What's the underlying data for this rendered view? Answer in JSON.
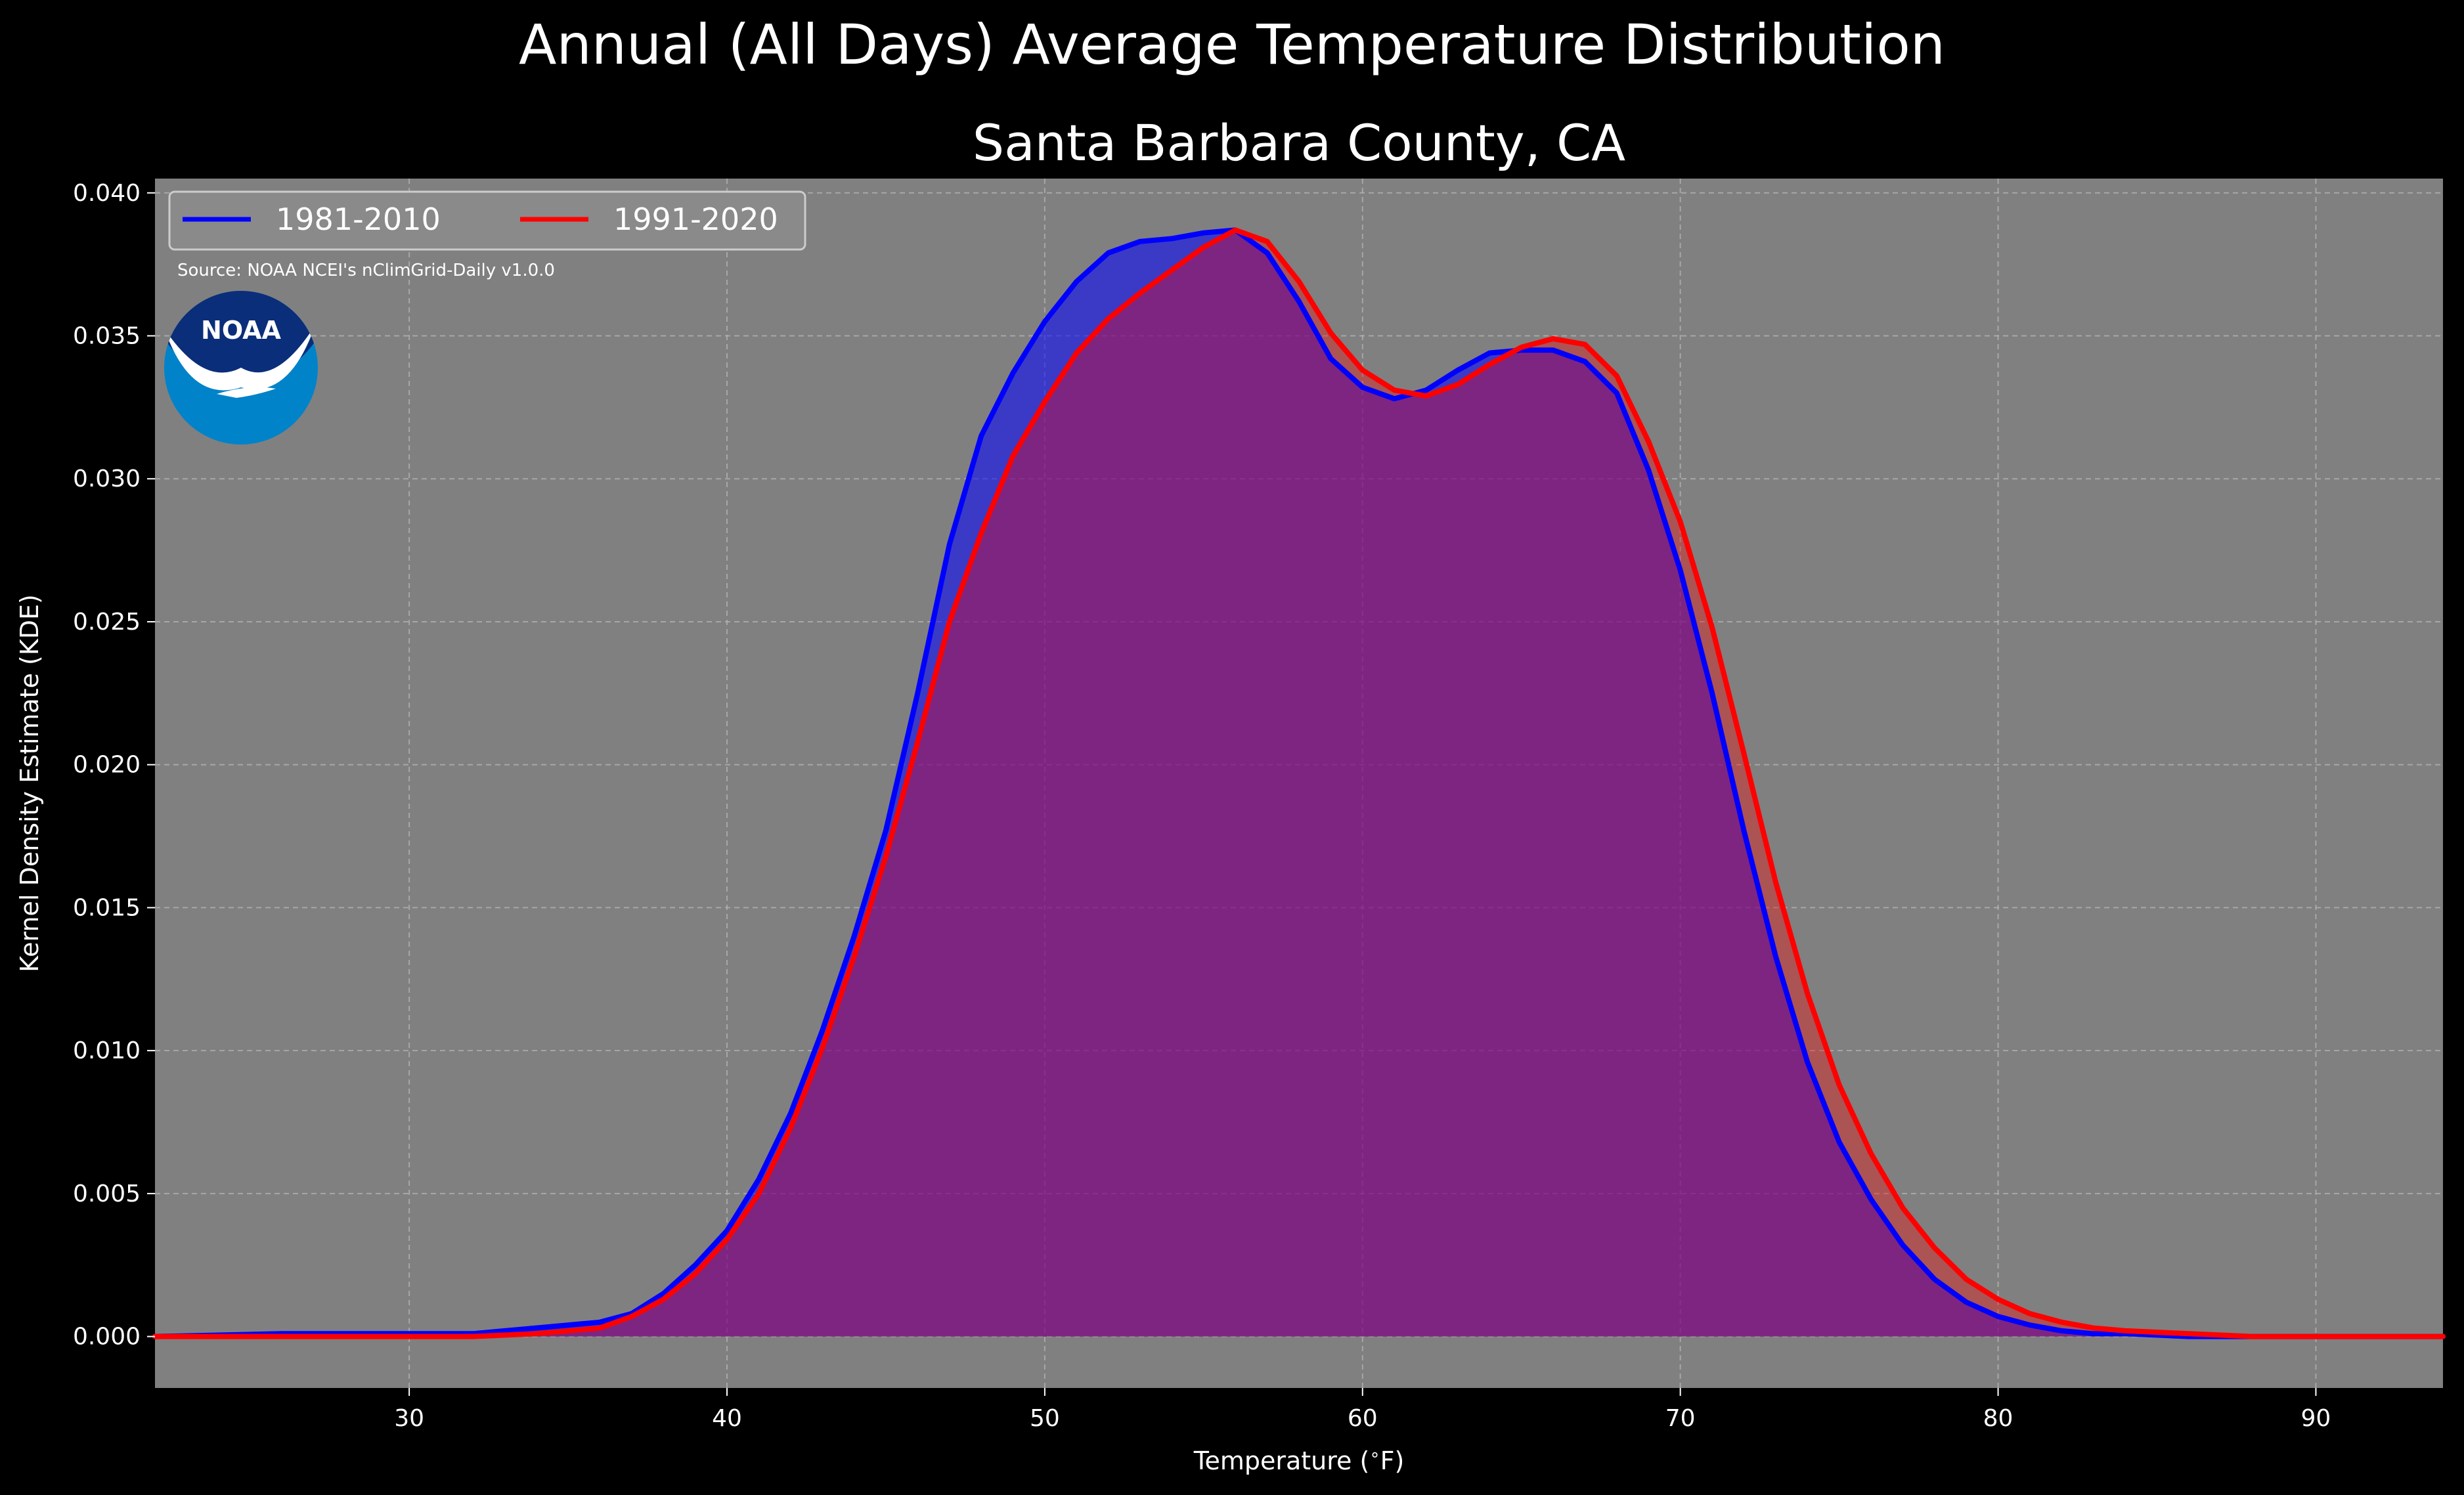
{
  "suptitle": "Annual (All Days) Average Temperature Distribution",
  "logo_text": "NOAA",
  "chart_data": {
    "type": "area",
    "title": "Santa Barbara County, CA",
    "xlabel": "Temperature ($^\\circ$F)",
    "ylabel": "Kernel Density Estimate (KDE)",
    "xlim": [
      22,
      94
    ],
    "ylim": [
      -0.0018,
      0.0405
    ],
    "xticks": [
      30,
      40,
      50,
      60,
      70,
      80,
      90
    ],
    "yticks": [
      0.0,
      0.005,
      0.01,
      0.015,
      0.02,
      0.025,
      0.03,
      0.035,
      0.04
    ],
    "ytick_labels": [
      "0.000",
      "0.005",
      "0.010",
      "0.015",
      "0.020",
      "0.025",
      "0.030",
      "0.035",
      "0.040"
    ],
    "grid": true,
    "legend_position": "top-left",
    "annotation": "Source: NOAA NCEI's nClimGrid-Daily v1.0.0",
    "background": "#808080",
    "x": [
      22,
      26,
      28,
      30,
      32,
      34,
      36,
      37,
      38,
      39,
      40,
      41,
      42,
      43,
      44,
      45,
      46,
      47,
      48,
      49,
      50,
      51,
      52,
      53,
      54,
      55,
      56,
      57,
      58,
      59,
      60,
      61,
      62,
      63,
      64,
      65,
      66,
      67,
      68,
      69,
      70,
      71,
      72,
      73,
      74,
      75,
      76,
      77,
      78,
      79,
      80,
      81,
      82,
      83,
      84,
      86,
      88,
      90,
      94
    ],
    "series": [
      {
        "name": "1981-2010",
        "color": "#0000ff",
        "fill": "#0000ff",
        "values": [
          0.0,
          0.0001,
          0.0001,
          0.0001,
          0.0001,
          0.0003,
          0.0005,
          0.0008,
          0.0015,
          0.0025,
          0.0037,
          0.0055,
          0.0078,
          0.0107,
          0.014,
          0.0177,
          0.0225,
          0.0277,
          0.0315,
          0.0337,
          0.0355,
          0.0369,
          0.0379,
          0.0383,
          0.0384,
          0.0386,
          0.0387,
          0.0379,
          0.0362,
          0.0342,
          0.0332,
          0.0328,
          0.0331,
          0.0338,
          0.0344,
          0.0345,
          0.0345,
          0.0341,
          0.033,
          0.0303,
          0.0268,
          0.0225,
          0.0177,
          0.0133,
          0.0096,
          0.0068,
          0.0048,
          0.0032,
          0.002,
          0.0012,
          0.0007,
          0.0004,
          0.0002,
          0.0001,
          0.0001,
          0.0,
          0.0,
          0.0,
          0.0
        ]
      },
      {
        "name": "1991-2020",
        "color": "#ff0000",
        "fill": "#ff0000",
        "values": [
          0.0,
          0.0,
          0.0,
          0.0,
          0.0,
          0.0001,
          0.0003,
          0.0007,
          0.0013,
          0.0022,
          0.0034,
          0.005,
          0.0073,
          0.0101,
          0.0133,
          0.0168,
          0.0208,
          0.025,
          0.0281,
          0.0308,
          0.0327,
          0.0344,
          0.0356,
          0.0365,
          0.0373,
          0.0381,
          0.0387,
          0.0383,
          0.0369,
          0.0351,
          0.0338,
          0.0331,
          0.0329,
          0.0333,
          0.034,
          0.0346,
          0.0349,
          0.0347,
          0.0336,
          0.0313,
          0.0285,
          0.0248,
          0.0204,
          0.0159,
          0.012,
          0.0088,
          0.0064,
          0.0045,
          0.0031,
          0.002,
          0.0013,
          0.0008,
          0.0005,
          0.0003,
          0.0002,
          0.0001,
          0.0,
          0.0,
          0.0
        ]
      }
    ]
  }
}
